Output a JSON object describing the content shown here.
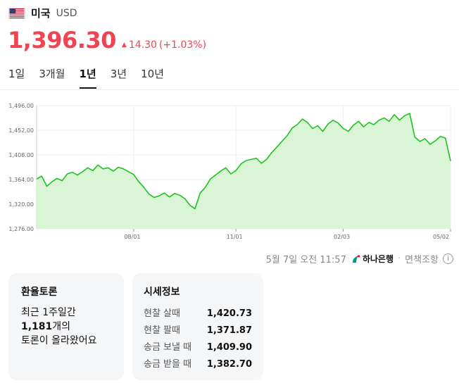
{
  "header": {
    "flag_icon": "us-flag-icon",
    "country": "미국",
    "currency": "USD"
  },
  "price": {
    "value": "1,396.30",
    "change": "14.30",
    "change_pct": "(+1.03%)",
    "direction_icon": "up-triangle-icon",
    "color": "#f04452"
  },
  "tabs": [
    {
      "label": "1일",
      "active": false
    },
    {
      "label": "3개월",
      "active": false
    },
    {
      "label": "1년",
      "active": true
    },
    {
      "label": "3년",
      "active": false
    },
    {
      "label": "10년",
      "active": false
    }
  ],
  "chart_data": {
    "type": "area",
    "line_color": "#1ec31e",
    "fill_color": "#d9f5d6",
    "ylim": [
      1276,
      1496
    ],
    "y_ticks": [
      "1,496.00",
      "1,452.00",
      "1,408.00",
      "1,364.00",
      "1,320.00",
      "1,276.00"
    ],
    "y_tick_values": [
      1496,
      1452,
      1408,
      1364,
      1320,
      1276
    ],
    "x_ticks": [
      "08/01",
      "11/01",
      "02/03",
      "05/02"
    ],
    "x_tick_index": [
      19,
      39,
      60,
      81
    ],
    "values": [
      1365,
      1370,
      1352,
      1360,
      1366,
      1362,
      1374,
      1377,
      1372,
      1378,
      1385,
      1380,
      1390,
      1383,
      1385,
      1379,
      1386,
      1383,
      1378,
      1373,
      1360,
      1350,
      1338,
      1332,
      1335,
      1340,
      1333,
      1339,
      1336,
      1330,
      1318,
      1312,
      1340,
      1350,
      1365,
      1372,
      1379,
      1385,
      1374,
      1380,
      1392,
      1398,
      1400,
      1402,
      1393,
      1400,
      1412,
      1422,
      1432,
      1442,
      1456,
      1462,
      1472,
      1466,
      1455,
      1460,
      1450,
      1463,
      1470,
      1465,
      1455,
      1450,
      1461,
      1468,
      1458,
      1466,
      1462,
      1470,
      1474,
      1468,
      1480,
      1470,
      1478,
      1482,
      1440,
      1432,
      1437,
      1427,
      1433,
      1441,
      1438,
      1397
    ]
  },
  "source": {
    "timestamp": "5월 7일 오전 11:57",
    "bank_icon": "hana-bank-logo-icon",
    "bank": "하나은행",
    "separator": "·",
    "disclaimer": "면책조항",
    "info_icon": "info-icon"
  },
  "forum": {
    "title": "환율토론",
    "line1": "최근 1주일간",
    "count": "1,181",
    "count_suffix": "개의",
    "line3": "토론이 올라왔어요"
  },
  "rates": {
    "title": "시세정보",
    "rows": [
      {
        "label": "현찰 살때",
        "value": "1,420.73"
      },
      {
        "label": "현찰 팔때",
        "value": "1,371.87"
      },
      {
        "label": "송금 보낼 때",
        "value": "1,409.90"
      },
      {
        "label": "송금 받을 때",
        "value": "1,382.70"
      }
    ]
  }
}
